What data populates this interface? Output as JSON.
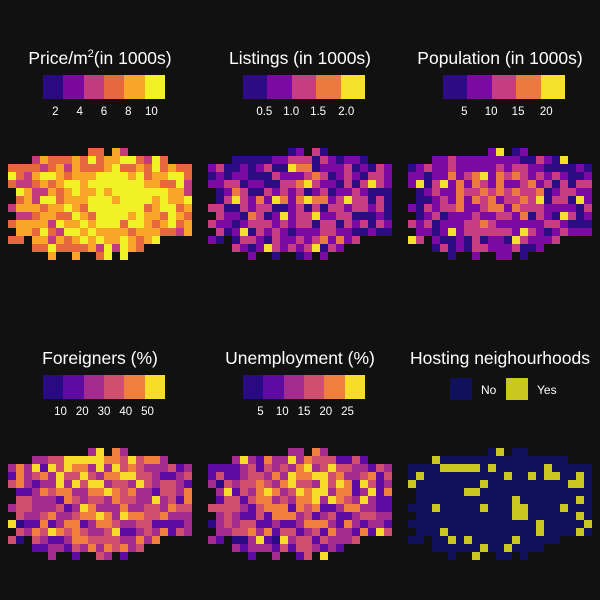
{
  "panels": [
    {
      "title": "Price/m",
      "title_sup": "2",
      "title_suffix": "(in 1000s)",
      "colors": [
        "#2a0a83",
        "#7a089f",
        "#c23b7f",
        "#e8683d",
        "#f9a527",
        "#f1f126"
      ],
      "ticks": [
        {
          "label": "2",
          "frac": 0.12
        },
        {
          "label": "4",
          "frac": 0.31
        },
        {
          "label": "6",
          "frac": 0.5
        },
        {
          "label": "8",
          "frac": 0.69
        },
        {
          "label": "10",
          "frac": 0.87
        }
      ]
    },
    {
      "title": "Listings (in 1000s)",
      "colors": [
        "#2d0b85",
        "#7a0aa2",
        "#c83d82",
        "#ec7a40",
        "#f5e02b"
      ],
      "ticks": [
        {
          "label": "0.5",
          "frac": 0.19
        },
        {
          "label": "1.0",
          "frac": 0.4
        },
        {
          "label": "1.5",
          "frac": 0.61
        },
        {
          "label": "2.0",
          "frac": 0.83
        }
      ]
    },
    {
      "title": "Population (in 1000s)",
      "colors": [
        "#2d0b85",
        "#7a0aa2",
        "#c83d82",
        "#ec7a40",
        "#f5e02b"
      ],
      "ticks": [
        {
          "label": "5",
          "frac": 0.19
        },
        {
          "label": "10",
          "frac": 0.4
        },
        {
          "label": "15",
          "frac": 0.61
        },
        {
          "label": "20",
          "frac": 0.83
        }
      ]
    },
    {
      "title": "Foreigners (%)",
      "colors": [
        "#2a0a83",
        "#5e0ba1",
        "#a32a8f",
        "#d04f6f",
        "#ef7f3d",
        "#f5dd2a"
      ],
      "ticks": [
        {
          "label": "10",
          "frac": 0.16
        },
        {
          "label": "20",
          "frac": 0.33
        },
        {
          "label": "30",
          "frac": 0.5
        },
        {
          "label": "40",
          "frac": 0.67
        },
        {
          "label": "50",
          "frac": 0.84
        }
      ]
    },
    {
      "title": "Unemployment (%)",
      "colors": [
        "#2a0a83",
        "#5e0ba1",
        "#a32a8f",
        "#d04f6f",
        "#ef7f3d",
        "#f5dd2a"
      ],
      "ticks": [
        {
          "label": "5",
          "frac": 0.16
        },
        {
          "label": "10",
          "frac": 0.33
        },
        {
          "label": "15",
          "frac": 0.5
        },
        {
          "label": "20",
          "frac": 0.67
        },
        {
          "label": "25",
          "frac": 0.84
        }
      ]
    },
    {
      "title": "Hosting neighourhoods",
      "categories": [
        {
          "label": "No",
          "color": "#10105c"
        },
        {
          "label": "Yes",
          "color": "#c8c81e"
        }
      ]
    }
  ]
}
